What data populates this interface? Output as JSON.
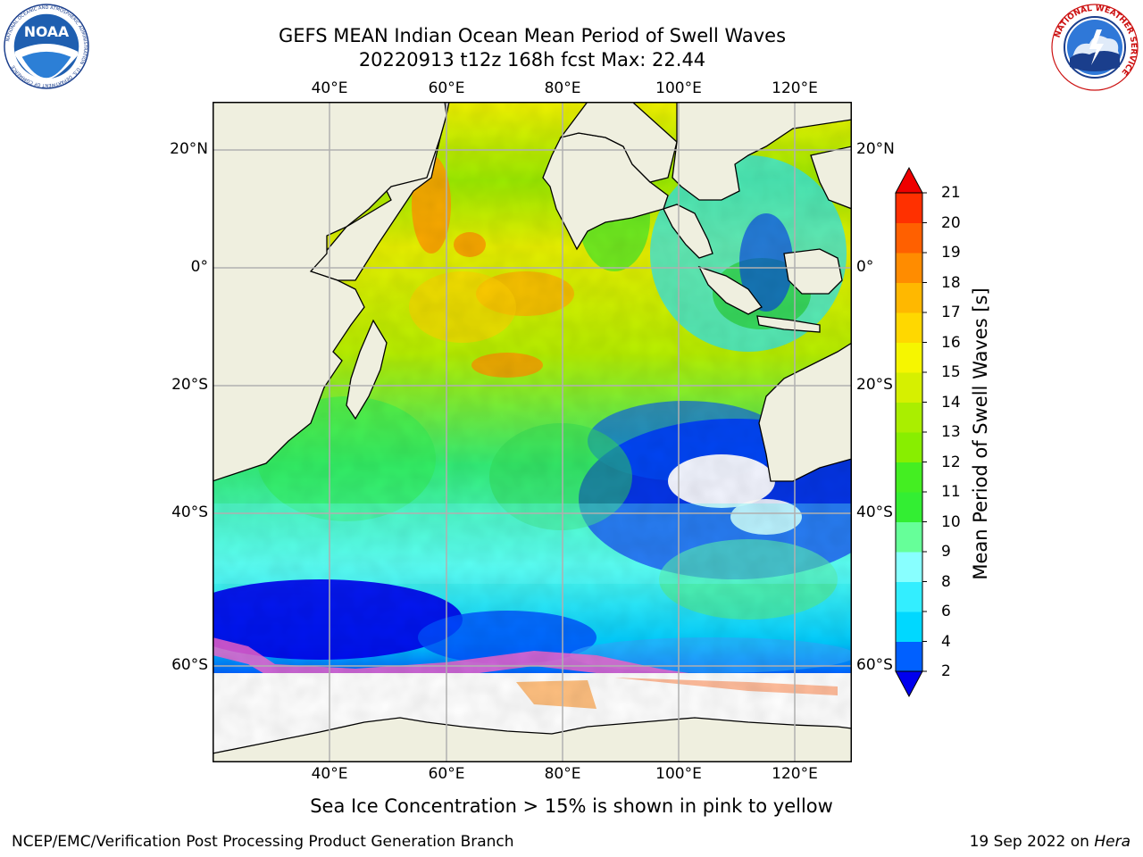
{
  "header": {
    "title_line1": "GEFS MEAN Indian Ocean Mean Period of Swell Waves",
    "title_line2": "20220913 t12z 168h fcst   Max: 22.44"
  },
  "logos": {
    "left": "NOAA",
    "left_ring_text": "NATIONAL OCEANIC AND ATMOSPHERIC ADMINISTRATION · U.S. DEPARTMENT OF COMMERCE",
    "right_ring_text": "NATIONAL WEATHER SERVICE"
  },
  "map": {
    "lon_labels": [
      "40°E",
      "60°E",
      "80°E",
      "100°E",
      "120°E"
    ],
    "lat_labels": [
      "20°N",
      "0°",
      "20°S",
      "40°S",
      "60°S"
    ],
    "land_color": "#efefdf",
    "ice_color": "#ffffff",
    "grid_color": "#b0b0b0"
  },
  "colorbar": {
    "title": "Mean Period of Swell Waves [s]",
    "ticks": [
      "2",
      "4",
      "6",
      "8",
      "9",
      "10",
      "11",
      "12",
      "13",
      "14",
      "15",
      "16",
      "17",
      "18",
      "19",
      "20",
      "21"
    ],
    "colors": [
      "#0060ff",
      "#00d8ff",
      "#33eeff",
      "#88ffff",
      "#66ff99",
      "#33ee33",
      "#44ee22",
      "#88ee00",
      "#aaee00",
      "#d6f000",
      "#f6f600",
      "#ffd800",
      "#ffb800",
      "#ff8c00",
      "#ff6000",
      "#ff3000"
    ],
    "under_color": "#0000ee",
    "over_color": "#ee0000"
  },
  "note": "Sea Ice Concentration > 15% is shown in pink to yellow",
  "footer": {
    "left": "NCEP/EMC/Verification Post Processing Product Generation Branch",
    "right_date": "19 Sep 2022 on ",
    "right_machine": "Hera"
  }
}
